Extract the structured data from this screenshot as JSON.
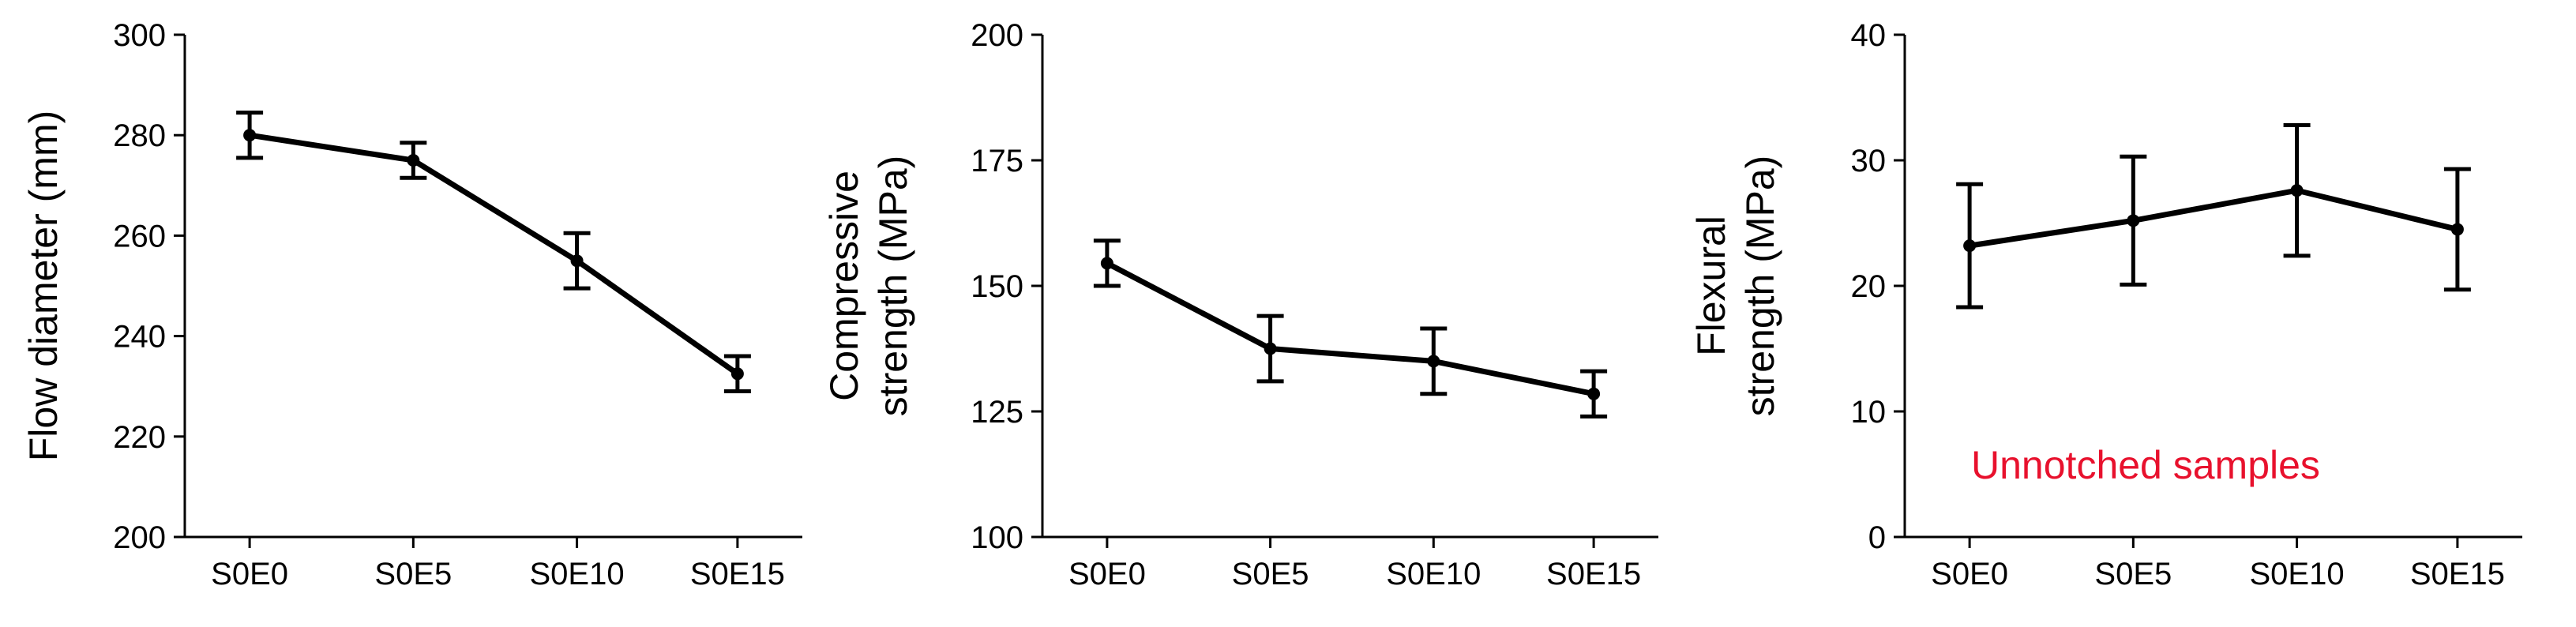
{
  "chart_data": [
    {
      "type": "line",
      "categories": [
        "S0E0",
        "S0E5",
        "S0E10",
        "S0E15"
      ],
      "values": [
        280,
        275,
        255,
        232.5
      ],
      "errors": [
        4.5,
        3.5,
        5.5,
        3.5
      ],
      "ylabel_lines": [
        "Flow diameter (mm)"
      ],
      "ylim": [
        200,
        300
      ],
      "yticks": [
        200,
        220,
        240,
        260,
        280,
        300
      ],
      "annotation": ""
    },
    {
      "type": "line",
      "categories": [
        "S0E0",
        "S0E5",
        "S0E10",
        "S0E15"
      ],
      "values": [
        154.5,
        137.5,
        135,
        128.5
      ],
      "errors": [
        4.5,
        6.5,
        6.5,
        4.5
      ],
      "ylabel_lines": [
        "Compressive",
        "strength (MPa)"
      ],
      "ylim": [
        100,
        200
      ],
      "yticks": [
        100,
        125,
        150,
        175,
        200
      ],
      "annotation": ""
    },
    {
      "type": "line",
      "categories": [
        "S0E0",
        "S0E5",
        "S0E10",
        "S0E15"
      ],
      "values": [
        23.2,
        25.2,
        27.6,
        24.5
      ],
      "errors": [
        4.9,
        5.1,
        5.2,
        4.8
      ],
      "ylabel_lines": [
        "Flexural",
        "strength (MPa)"
      ],
      "ylim": [
        0,
        40
      ],
      "yticks": [
        0,
        10,
        20,
        30,
        40
      ],
      "annotation": "Unnotched samples",
      "annotation_color": "#e8112d"
    }
  ]
}
